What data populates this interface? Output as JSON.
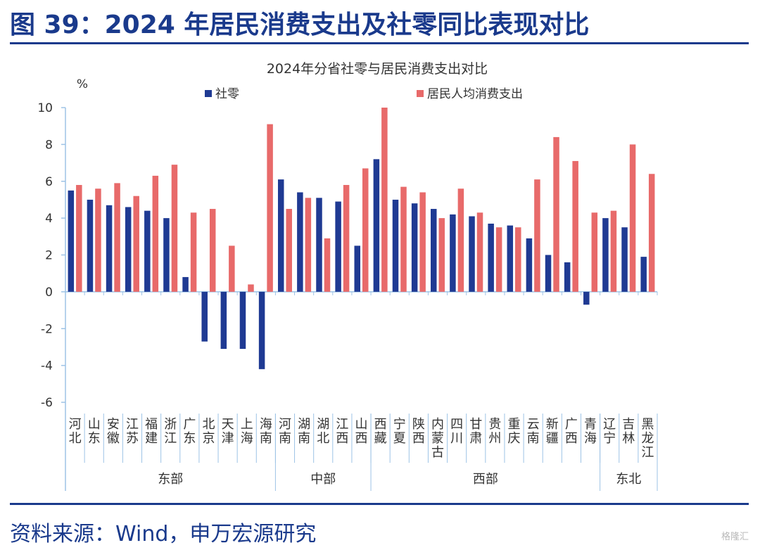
{
  "figure_title": "图 39：2024 年居民消费支出及社零同比表现对比",
  "source": "资料来源：Wind，申万宏源研究",
  "watermark": "格隆汇",
  "colors": {
    "retail": "#1f3a93",
    "consumption": "#e86a6a",
    "title": "#1a3a8c"
  },
  "chart_data": {
    "type": "bar",
    "title": "2024年分省社零与居民消费支出对比",
    "ylabel": "%",
    "ylim": [
      -6,
      10
    ],
    "yticks": [
      10,
      8,
      6,
      4,
      2,
      0,
      -2,
      -4,
      -6
    ],
    "legend_position": "top",
    "categories": [
      "河北",
      "山东",
      "安徽",
      "江苏",
      "福建",
      "浙江",
      "广东",
      "北京",
      "天津",
      "上海",
      "海南",
      "河南",
      "湖南",
      "湖北",
      "江西",
      "山西",
      "西藏",
      "宁夏",
      "陕西",
      "内蒙古",
      "四川",
      "甘肃",
      "贵州",
      "重庆",
      "云南",
      "新疆",
      "广西",
      "青海",
      "辽宁",
      "吉林",
      "黑龙江"
    ],
    "groups": [
      {
        "name": "东部",
        "start": 0,
        "end": 10
      },
      {
        "name": "中部",
        "start": 11,
        "end": 15
      },
      {
        "name": "西部",
        "start": 16,
        "end": 27
      },
      {
        "name": "东北",
        "start": 28,
        "end": 30
      }
    ],
    "series": [
      {
        "name": "社零",
        "color": "#1f3a93",
        "values": [
          5.5,
          5.0,
          4.7,
          4.6,
          4.4,
          4.0,
          0.8,
          -2.7,
          -3.1,
          -3.1,
          -4.2,
          6.1,
          5.4,
          5.1,
          4.9,
          2.5,
          7.2,
          5.0,
          4.8,
          4.5,
          4.2,
          4.1,
          3.7,
          3.6,
          2.9,
          2.0,
          1.6,
          -0.7,
          4.0,
          3.5,
          1.9
        ]
      },
      {
        "name": "居民人均消费支出",
        "color": "#e86a6a",
        "values": [
          5.8,
          5.6,
          5.9,
          5.2,
          6.3,
          6.9,
          4.3,
          4.5,
          2.5,
          0.4,
          9.1,
          4.5,
          5.1,
          2.9,
          5.8,
          6.7,
          10.0,
          5.7,
          5.4,
          4.0,
          5.6,
          4.3,
          3.5,
          3.5,
          6.1,
          8.4,
          7.1,
          4.3,
          4.4,
          8.0,
          6.4
        ]
      }
    ]
  }
}
